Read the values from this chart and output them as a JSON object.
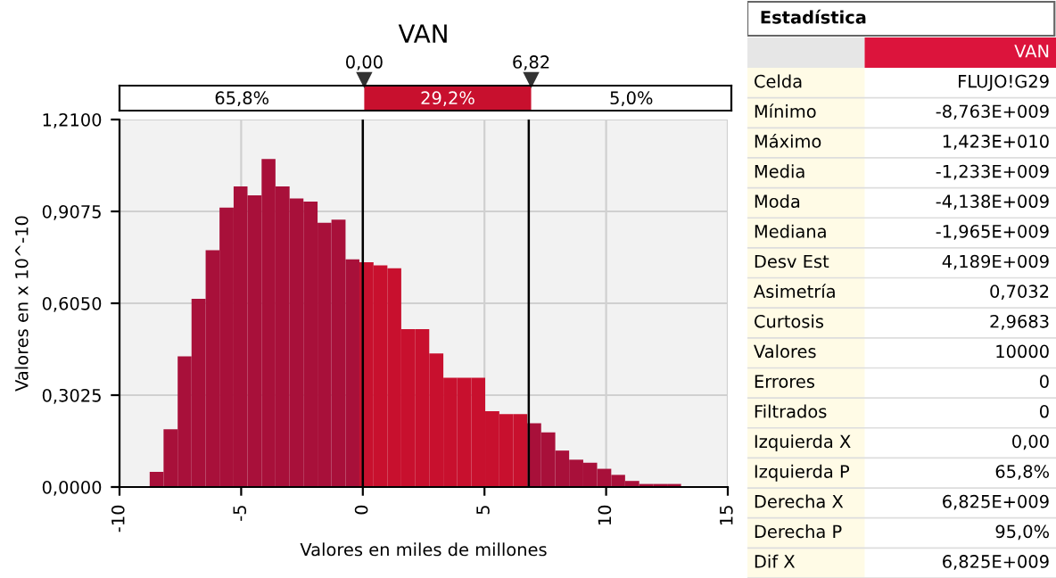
{
  "chart_data": [
    {
      "type": "histogram",
      "title": "VAN",
      "xlabel": "Valores en miles de millones",
      "ylabel": "Valores en x 10^-10",
      "bins": [
        -8.76,
        -8.19,
        -7.61,
        -7.04,
        -6.46,
        -5.89,
        -5.31,
        -4.74,
        -4.16,
        -3.59,
        -3.01,
        -2.44,
        -1.86,
        -1.29,
        -0.71,
        -0.14,
        0.44,
        1.01,
        1.58,
        2.16,
        2.73,
        3.31,
        3.88,
        4.46,
        5.03,
        5.61,
        6.18,
        6.76,
        7.33,
        7.91,
        8.48,
        9.06,
        9.63,
        10.21,
        10.78,
        11.36,
        11.93,
        12.51,
        13.08,
        13.66,
        14.23
      ],
      "values": [
        0.05,
        0.19,
        0.43,
        0.62,
        0.78,
        0.92,
        0.99,
        0.96,
        1.08,
        0.99,
        0.95,
        0.94,
        0.87,
        0.88,
        0.75,
        0.74,
        0.73,
        0.72,
        0.52,
        0.52,
        0.44,
        0.36,
        0.36,
        0.36,
        0.25,
        0.24,
        0.24,
        0.21,
        0.18,
        0.12,
        0.09,
        0.08,
        0.06,
        0.04,
        0.02,
        0.01,
        0.01,
        0.01,
        0.0,
        0.0
      ],
      "colors": [
        "#a8103a",
        "#a8103a",
        "#a8103a",
        "#a8103a",
        "#a8103a",
        "#a8103a",
        "#a8103a",
        "#a8103a",
        "#a8103a",
        "#a8103a",
        "#a8103a",
        "#a8103a",
        "#a8103a",
        "#a8103a",
        "#a8103a",
        "#c8102e",
        "#c8102e",
        "#c8102e",
        "#c8102e",
        "#c8102e",
        "#c8102e",
        "#c8102e",
        "#c8102e",
        "#c8102e",
        "#c8102e",
        "#c8102e",
        "#c8102e",
        "#a8103a",
        "#a8103a",
        "#a8103a",
        "#a8103a",
        "#a8103a",
        "#a8103a",
        "#a8103a",
        "#a8103a",
        "#a8103a",
        "#a8103a",
        "#a8103a",
        "#a8103a",
        "#a8103a"
      ],
      "xlim": [
        -10,
        15
      ],
      "xticks": [
        -10,
        -5,
        0,
        5,
        10,
        15
      ],
      "ylim": [
        0,
        1.21
      ],
      "yticks": [
        {
          "value": 0,
          "label": "0,0000"
        },
        {
          "value": 0.3025,
          "label": "0,3025"
        },
        {
          "value": 0.605,
          "label": "0,6050"
        },
        {
          "value": 0.9075,
          "label": "0,9075"
        },
        {
          "value": 1.21,
          "label": "1,2100"
        }
      ],
      "grid": true,
      "ref_lines": [
        {
          "axis": "x",
          "value": 0,
          "label": "0,00",
          "color": "#000000"
        },
        {
          "axis": "x",
          "value": 6.82,
          "label": "6,82",
          "color": "#000000"
        }
      ],
      "annotations": [
        "65,8%",
        "29,2%",
        "5,0%"
      ]
    },
    {
      "type": "other",
      "title": "Estadística",
      "subtitle": "VAN",
      "annotations": [
        "Celda",
        "FLUJO!G29",
        "Mínimo",
        "-8,763E+009",
        "Máximo",
        "1,423E+010",
        "Media",
        "-1,233E+009",
        "Moda",
        "-4,138E+009",
        "Mediana",
        "-1,965E+009",
        "Desv Est",
        "4,189E+009",
        "Asimetría",
        "0,7032",
        "Curtosis",
        "2,9683",
        "Valores",
        "10000",
        "Errores",
        "0",
        "Filtrados",
        "0",
        "Izquierda X",
        "0,00",
        "Izquierda P",
        "65,8%",
        "Derecha X",
        "6,825E+009",
        "Derecha P",
        "95,0%",
        "Dif X",
        "6,825E+009"
      ]
    }
  ]
}
